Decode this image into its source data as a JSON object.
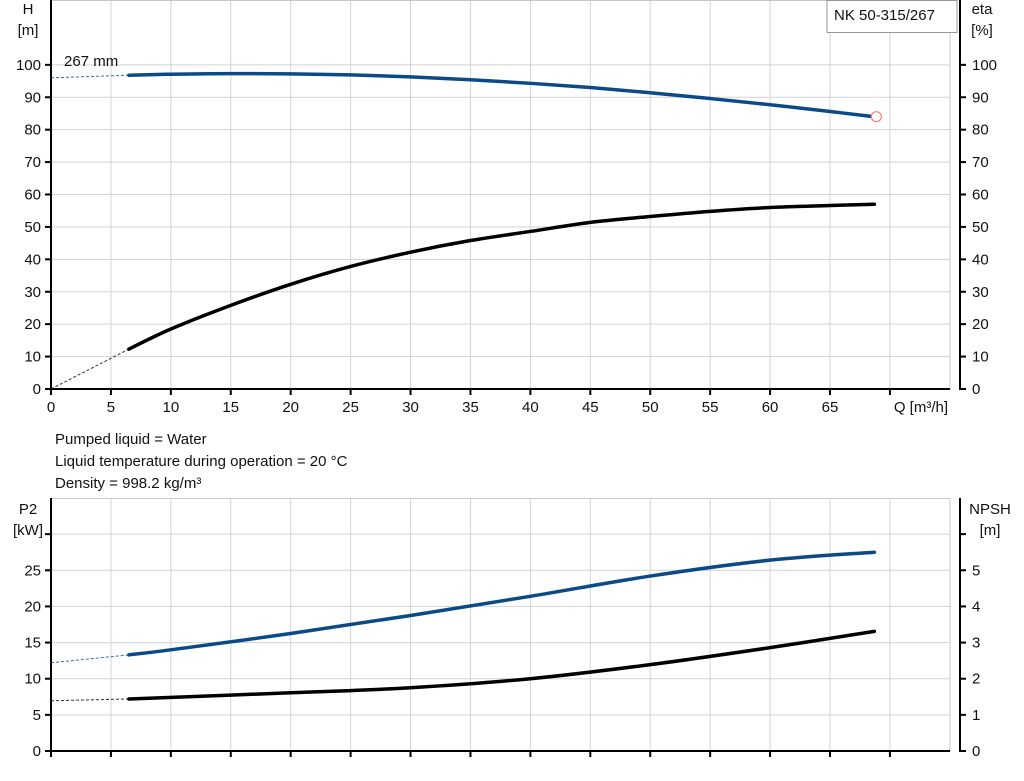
{
  "chart_data": [
    {
      "type": "line",
      "title_box": "NK 50-315/267",
      "xlabel": "Q [m³/h]",
      "xlim": [
        0,
        75
      ],
      "xticks": [
        0,
        5,
        10,
        15,
        20,
        25,
        30,
        35,
        40,
        45,
        50,
        55,
        60,
        65
      ],
      "left_axis": {
        "label_line1": "H",
        "label_line2": "[m]",
        "ylim": [
          0,
          120
        ],
        "ticks": [
          0,
          10,
          20,
          30,
          40,
          50,
          60,
          70,
          80,
          90,
          100
        ]
      },
      "right_axis": {
        "label_line1": "eta",
        "label_line2": "[%]",
        "ylim": [
          0,
          120
        ],
        "ticks": [
          0,
          10,
          20,
          30,
          40,
          50,
          60,
          70,
          80,
          90,
          100
        ]
      },
      "grid": true,
      "series": [
        {
          "name": "267 mm",
          "axis": "left",
          "color": "#0b4a86",
          "x": [
            6.5,
            10,
            15,
            20,
            25,
            30,
            35,
            40,
            45,
            50,
            55,
            60,
            65,
            68.7
          ],
          "y": [
            96.8,
            97.1,
            97.3,
            97.2,
            96.9,
            96.3,
            95.4,
            94.3,
            93.0,
            91.4,
            89.6,
            87.7,
            85.6,
            84.0
          ],
          "extrapolation_start": [
            0,
            96.0
          ],
          "end_marker_color": "#f08080"
        },
        {
          "axis": "right",
          "color": "#000000",
          "x": [
            6.5,
            10,
            15,
            20,
            25,
            30,
            35,
            40,
            45,
            50,
            55,
            60,
            65,
            68.7
          ],
          "y": [
            12.3,
            18.5,
            25.8,
            32.3,
            37.8,
            42.2,
            45.8,
            48.6,
            51.4,
            53.2,
            54.8,
            56.0,
            56.6,
            57.0
          ],
          "extrapolation_start": [
            0,
            0
          ]
        }
      ]
    },
    {
      "type": "line",
      "xlim": [
        0,
        75
      ],
      "xticks": [
        0,
        5,
        10,
        15,
        20,
        25,
        30,
        35,
        40,
        45,
        50,
        55,
        60,
        65
      ],
      "left_axis": {
        "label_line1": "P2",
        "label_line2": "[kW]",
        "ylim": [
          0,
          35
        ],
        "ticks": [
          0,
          5,
          10,
          15,
          20,
          25,
          30
        ],
        "tick_labels": [
          "0",
          "5",
          "10",
          "15",
          "20",
          "25",
          ""
        ]
      },
      "right_axis": {
        "label_line1": "NPSH",
        "label_line2": "[m]",
        "ylim": [
          0,
          7
        ],
        "ticks": [
          0,
          1,
          2,
          3,
          4,
          5,
          6
        ],
        "tick_labels": [
          "0",
          "1",
          "2",
          "3",
          "4",
          "5",
          ""
        ]
      },
      "grid": true,
      "series": [
        {
          "axis": "left",
          "color": "#0b4a86",
          "x": [
            6.5,
            10,
            20,
            30,
            40,
            50,
            60,
            68.7
          ],
          "y": [
            13.3,
            14.0,
            16.25,
            18.75,
            21.4,
            24.2,
            26.4,
            27.5
          ],
          "extrapolation_start": [
            0,
            12.2
          ]
        },
        {
          "axis": "right",
          "color": "#000000",
          "x": [
            6.5,
            20,
            30,
            40,
            50,
            60,
            68.7
          ],
          "y": [
            1.44,
            1.61,
            1.75,
            2.0,
            2.39,
            2.86,
            3.31
          ],
          "extrapolation_start": [
            0,
            1.39
          ]
        }
      ]
    }
  ],
  "info": {
    "line1": "Pumped liquid = Water",
    "line2": "Liquid temperature during operation = 20 °C",
    "line3": "Density = 998.2 kg/m³"
  }
}
